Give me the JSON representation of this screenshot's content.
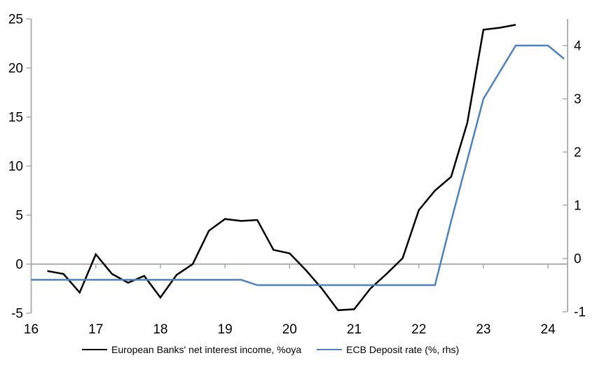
{
  "chart_data": {
    "type": "line",
    "title": "",
    "legend_position": "bottom",
    "grid": "zero-line-only",
    "background": "#ffffff",
    "axis_color": "#a6a6a6",
    "x_axis": {
      "tick_values": [
        16,
        17,
        18,
        19,
        20,
        21,
        22,
        23,
        24
      ],
      "tick_labels": [
        "16",
        "17",
        "18",
        "19",
        "20",
        "21",
        "22",
        "23",
        "24"
      ],
      "range": [
        16,
        24.3
      ]
    },
    "left_axis": {
      "tick_values": [
        -5,
        0,
        5,
        10,
        15,
        20,
        25
      ],
      "tick_labels": [
        "-5",
        "0",
        "5",
        "10",
        "15",
        "20",
        "25"
      ],
      "range": [
        -5,
        25
      ]
    },
    "right_axis": {
      "tick_values": [
        -1,
        0,
        1,
        2,
        3,
        4
      ],
      "tick_labels": [
        "-1",
        "0",
        "1",
        "2",
        "3",
        "4"
      ],
      "range": [
        -1,
        4.5
      ]
    },
    "series": [
      {
        "name": "European Banks' net interest income, %oya",
        "axis": "left",
        "color": "#000000",
        "points": [
          [
            16.25,
            -0.7
          ],
          [
            16.5,
            -1.0
          ],
          [
            16.75,
            -2.9
          ],
          [
            17.0,
            1.0
          ],
          [
            17.25,
            -1.0
          ],
          [
            17.5,
            -1.9
          ],
          [
            17.75,
            -1.2
          ],
          [
            18.0,
            -3.4
          ],
          [
            18.25,
            -1.1
          ],
          [
            18.5,
            0.0
          ],
          [
            18.75,
            3.4
          ],
          [
            19.0,
            4.6
          ],
          [
            19.25,
            4.4
          ],
          [
            19.5,
            4.5
          ],
          [
            19.75,
            1.45
          ],
          [
            20.0,
            1.1
          ],
          [
            20.25,
            -0.6
          ],
          [
            20.5,
            -2.5
          ],
          [
            20.75,
            -4.7
          ],
          [
            21.0,
            -4.6
          ],
          [
            21.25,
            -2.5
          ],
          [
            21.5,
            -1.0
          ],
          [
            21.75,
            0.6
          ],
          [
            22.0,
            5.5
          ],
          [
            22.25,
            7.5
          ],
          [
            22.5,
            8.9
          ],
          [
            22.75,
            14.4
          ],
          [
            23.0,
            23.9
          ],
          [
            23.25,
            24.1
          ],
          [
            23.5,
            24.4
          ]
        ]
      },
      {
        "name": "ECB Deposit rate (%, rhs)",
        "axis": "right",
        "color": "#4f81bd",
        "points": [
          [
            16.0,
            -0.4
          ],
          [
            16.25,
            -0.4
          ],
          [
            16.5,
            -0.4
          ],
          [
            16.75,
            -0.4
          ],
          [
            17.0,
            -0.4
          ],
          [
            17.25,
            -0.4
          ],
          [
            17.5,
            -0.4
          ],
          [
            17.75,
            -0.4
          ],
          [
            18.0,
            -0.4
          ],
          [
            18.25,
            -0.4
          ],
          [
            18.5,
            -0.4
          ],
          [
            18.75,
            -0.4
          ],
          [
            19.0,
            -0.4
          ],
          [
            19.25,
            -0.4
          ],
          [
            19.5,
            -0.5
          ],
          [
            19.75,
            -0.5
          ],
          [
            20.0,
            -0.5
          ],
          [
            20.25,
            -0.5
          ],
          [
            20.5,
            -0.5
          ],
          [
            20.75,
            -0.5
          ],
          [
            21.0,
            -0.5
          ],
          [
            21.25,
            -0.5
          ],
          [
            21.5,
            -0.5
          ],
          [
            21.75,
            -0.5
          ],
          [
            22.0,
            -0.5
          ],
          [
            22.25,
            -0.5
          ],
          [
            22.5,
            0.7
          ],
          [
            22.75,
            1.85
          ],
          [
            23.0,
            3.0
          ],
          [
            23.25,
            3.5
          ],
          [
            23.5,
            4.0
          ],
          [
            23.75,
            4.0
          ],
          [
            24.0,
            4.0
          ],
          [
            24.25,
            3.75
          ]
        ]
      }
    ]
  }
}
